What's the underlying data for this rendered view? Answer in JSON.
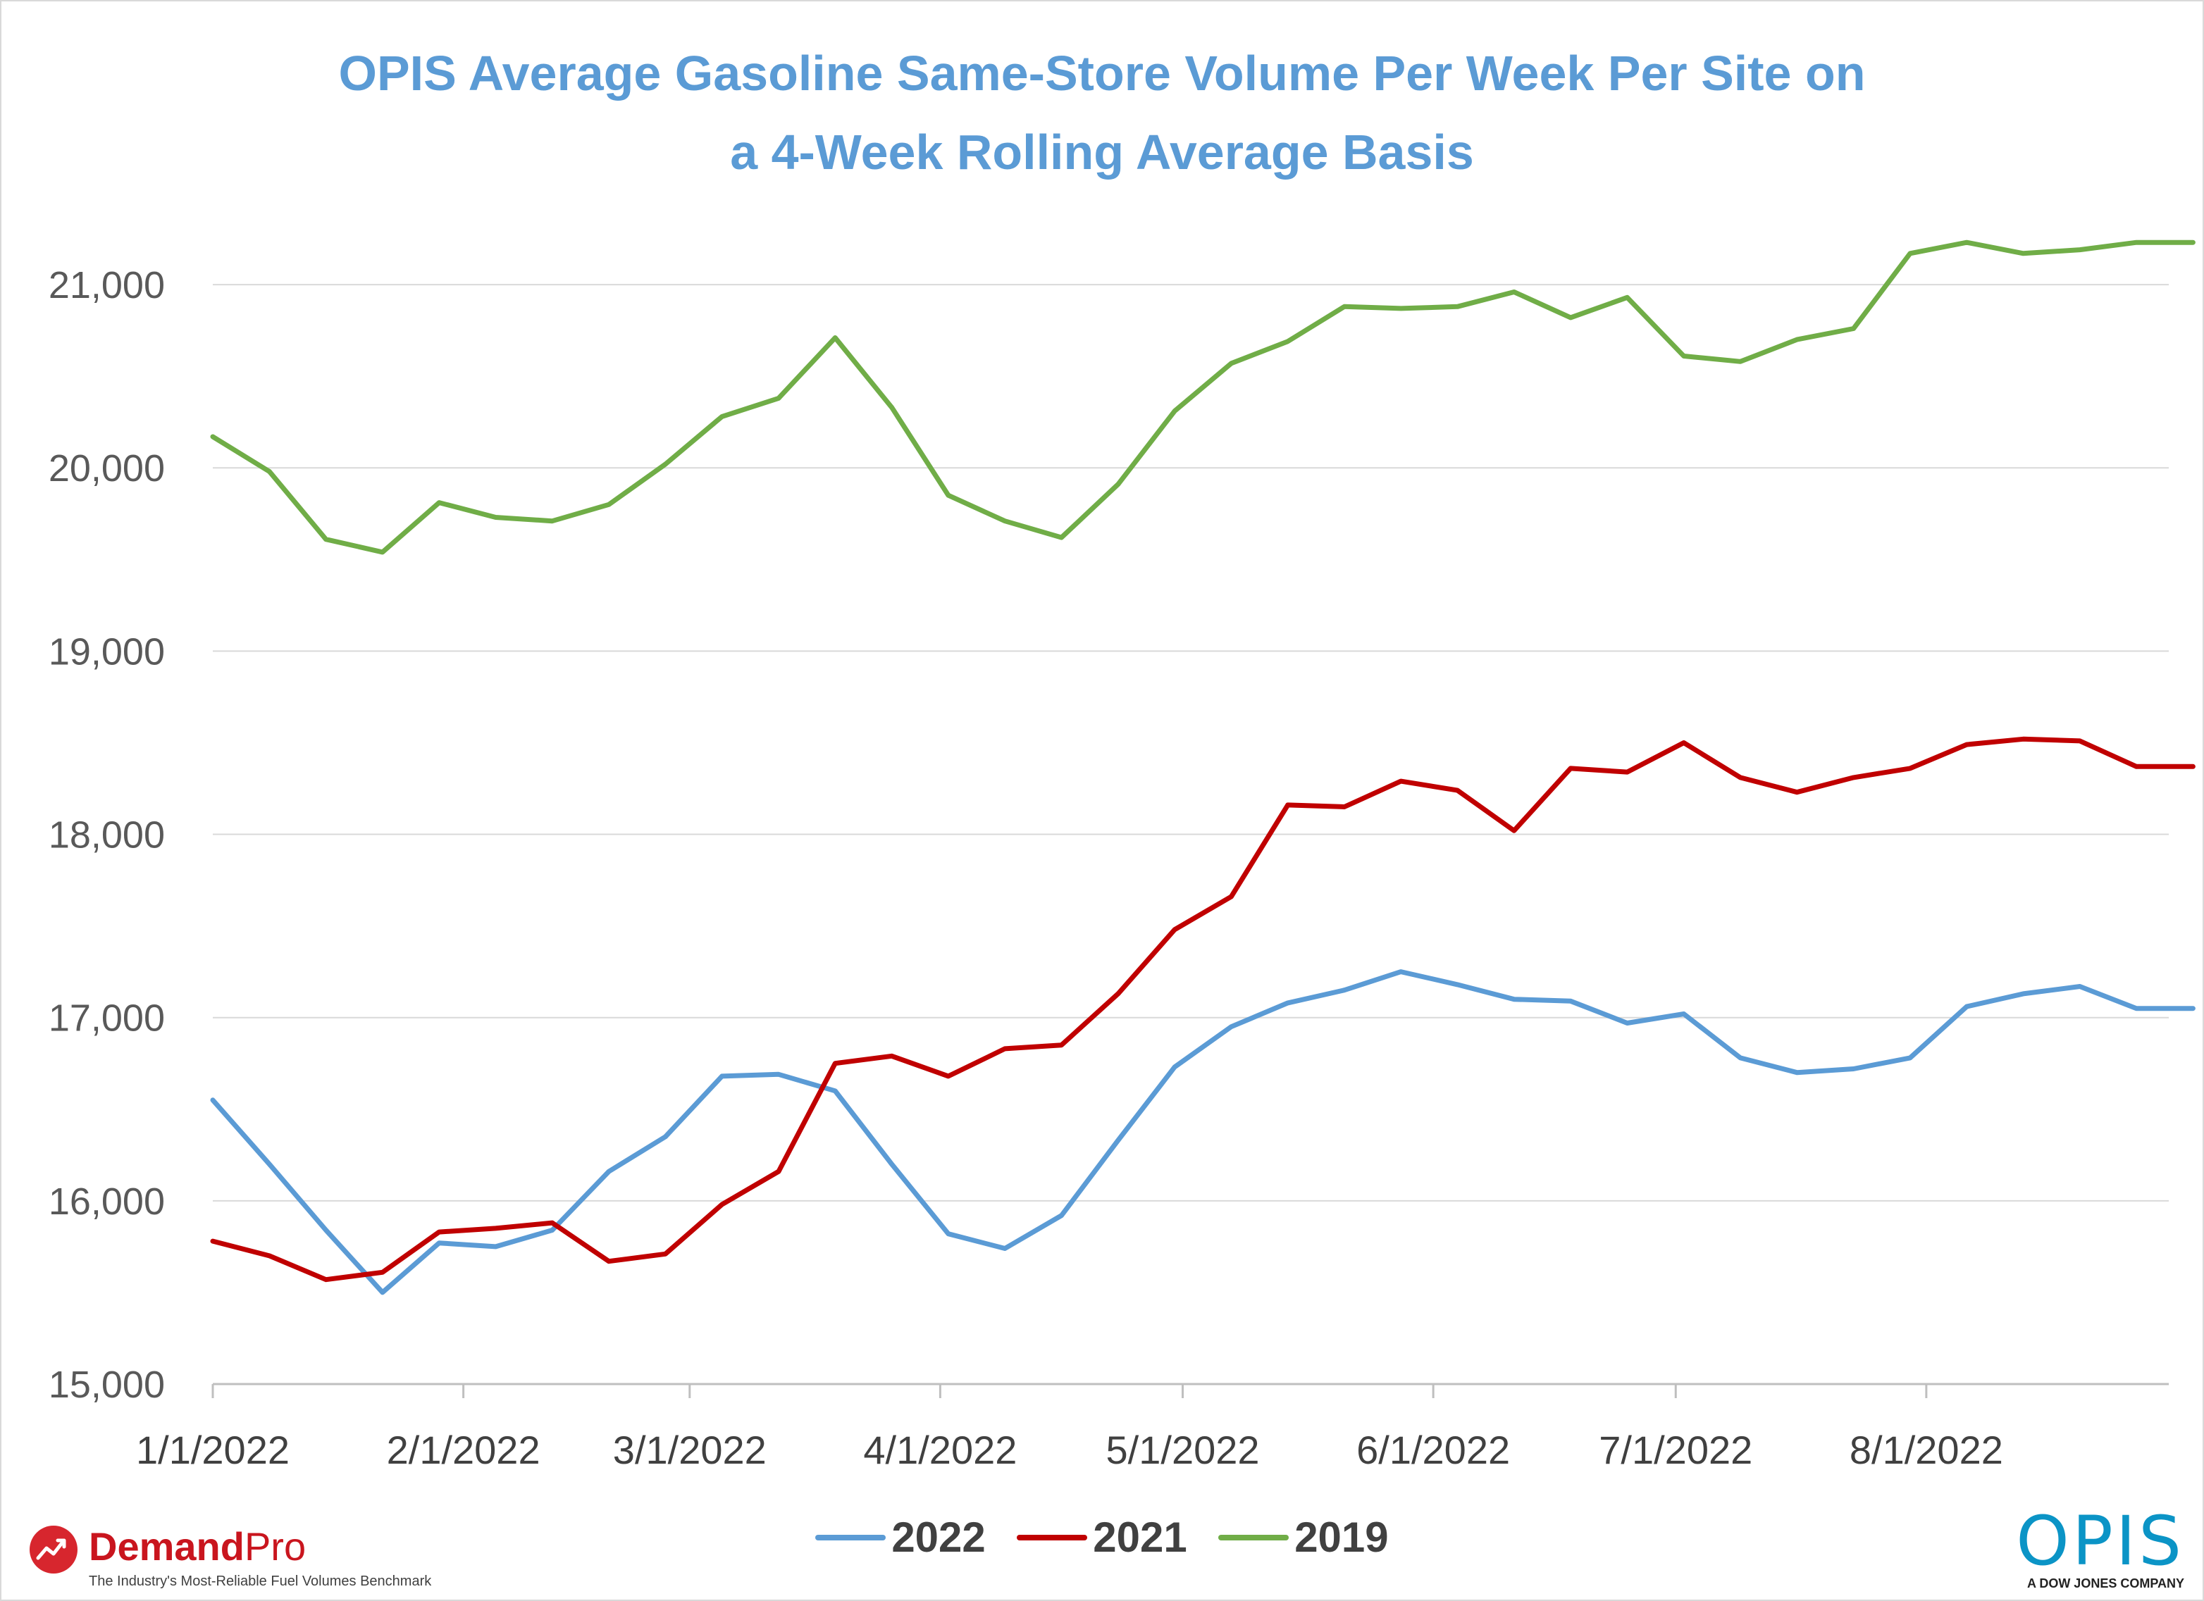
{
  "title_line1": "OPIS Average Gasoline Same-Store Volume Per Week Per Site on",
  "title_line2": "a 4-Week Rolling Average Basis",
  "chart_data": {
    "type": "line",
    "title": "OPIS Average Gasoline Same-Store Volume Per Week Per Site on a 4-Week Rolling Average Basis",
    "xlabel": "",
    "ylabel": "",
    "ylim": [
      15000,
      21400
    ],
    "yticks": [
      15000,
      16000,
      17000,
      18000,
      19000,
      20000,
      21000
    ],
    "ytick_labels": [
      "15,000",
      "16,000",
      "17,000",
      "18,000",
      "19,000",
      "20,000",
      "21,000"
    ],
    "x_start": "2022-01-01",
    "x_end": "2022-08-31",
    "xticks": [
      {
        "date": "2022-01-01",
        "label": "1/1/2022"
      },
      {
        "date": "2022-02-01",
        "label": "2/1/2022"
      },
      {
        "date": "2022-03-01",
        "label": "3/1/2022"
      },
      {
        "date": "2022-04-01",
        "label": "4/1/2022"
      },
      {
        "date": "2022-05-01",
        "label": "5/1/2022"
      },
      {
        "date": "2022-06-01",
        "label": "6/1/2022"
      },
      {
        "date": "2022-07-01",
        "label": "7/1/2022"
      },
      {
        "date": "2022-08-01",
        "label": "8/1/2022"
      }
    ],
    "x": [
      "2022-01-01",
      "2022-01-08",
      "2022-01-15",
      "2022-01-22",
      "2022-01-29",
      "2022-02-05",
      "2022-02-12",
      "2022-02-19",
      "2022-02-26",
      "2022-03-05",
      "2022-03-12",
      "2022-03-19",
      "2022-03-26",
      "2022-04-02",
      "2022-04-09",
      "2022-04-16",
      "2022-04-23",
      "2022-04-30",
      "2022-05-07",
      "2022-05-14",
      "2022-05-21",
      "2022-05-28",
      "2022-06-04",
      "2022-06-11",
      "2022-06-18",
      "2022-06-25",
      "2022-07-02",
      "2022-07-09",
      "2022-07-16",
      "2022-07-23",
      "2022-07-30",
      "2022-08-06",
      "2022-08-13",
      "2022-08-20",
      "2022-08-27",
      "2022-09-03"
    ],
    "series": [
      {
        "name": "2022",
        "color": "#5b9bd5",
        "values": [
          16550,
          16200,
          15840,
          15500,
          15770,
          15750,
          15840,
          16160,
          16350,
          16680,
          16690,
          16600,
          16200,
          15820,
          15740,
          15920,
          16330,
          16730,
          16950,
          17080,
          17150,
          17250,
          17180,
          17100,
          17090,
          16970,
          17020,
          16780,
          16700,
          16720,
          16780,
          17060,
          17130,
          17170,
          17050,
          17050
        ]
      },
      {
        "name": "2021",
        "color": "#c00000",
        "values": [
          15780,
          15700,
          15570,
          15610,
          15830,
          15850,
          15880,
          15670,
          15710,
          15980,
          16160,
          16750,
          16790,
          16680,
          16830,
          16850,
          17130,
          17480,
          17660,
          18160,
          18150,
          18290,
          18240,
          18020,
          18360,
          18340,
          18500,
          18310,
          18230,
          18310,
          18360,
          18490,
          18520,
          18510,
          18370,
          18370
        ]
      },
      {
        "name": "2019",
        "color": "#70ad47",
        "values": [
          20170,
          19980,
          19610,
          19540,
          19810,
          19730,
          19710,
          19800,
          20020,
          20280,
          20380,
          20710,
          20330,
          19850,
          19710,
          19620,
          19910,
          20310,
          20570,
          20690,
          20880,
          20870,
          20880,
          20960,
          20820,
          20930,
          20610,
          20580,
          20700,
          20760,
          21170,
          21230,
          21170,
          21190,
          21230,
          21230
        ]
      }
    ],
    "legend": [
      "2022",
      "2021",
      "2019"
    ],
    "legend_position": "bottom-center",
    "grid": "horizontal"
  },
  "logos": {
    "demandpro_name": "Demand",
    "demandpro_suffix": "Pro",
    "demandpro_tagline": "The Industry's Most-Reliable Fuel Volumes Benchmark",
    "opis_name": "OPIS",
    "opis_tagline": "A DOW JONES COMPANY"
  }
}
